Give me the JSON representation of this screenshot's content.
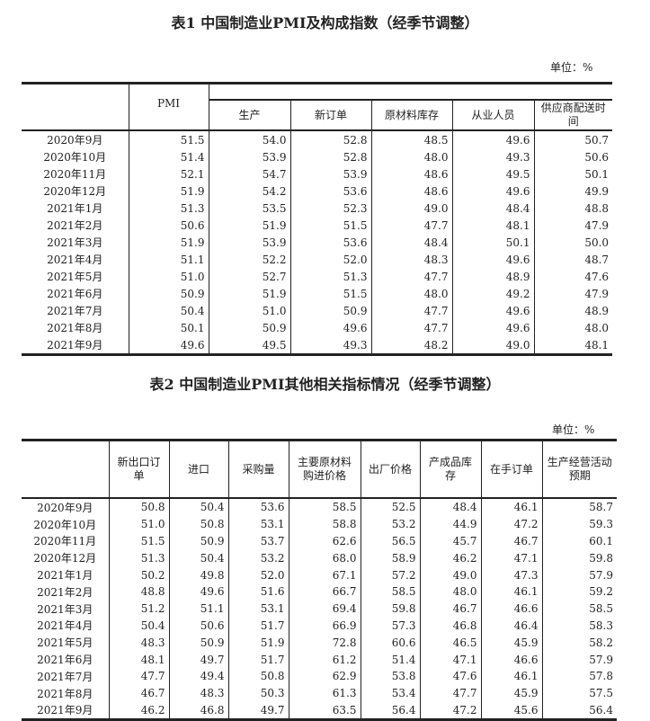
{
  "table1": {
    "title": "表1 中国制造业PMI及构成指数（经季节调整）",
    "unit": "单位：%",
    "headers": [
      "PMI",
      "生产",
      "新订单",
      "原材料库存",
      "从业人员",
      "供应商配送时间"
    ],
    "rows": [
      [
        "2020年9月",
        "51.5",
        "54.0",
        "52.8",
        "48.5",
        "49.6",
        "50.7"
      ],
      [
        "2020年10月",
        "51.4",
        "53.9",
        "52.8",
        "48.0",
        "49.3",
        "50.6"
      ],
      [
        "2020年11月",
        "52.1",
        "54.7",
        "53.9",
        "48.6",
        "49.5",
        "50.1"
      ],
      [
        "2020年12月",
        "51.9",
        "54.2",
        "53.6",
        "48.6",
        "49.6",
        "49.9"
      ],
      [
        "2021年1月",
        "51.3",
        "53.5",
        "52.3",
        "49.0",
        "48.4",
        "48.8"
      ],
      [
        "2021年2月",
        "50.6",
        "51.9",
        "51.5",
        "47.7",
        "48.1",
        "47.9"
      ],
      [
        "2021年3月",
        "51.9",
        "53.9",
        "53.6",
        "48.4",
        "50.1",
        "50.0"
      ],
      [
        "2021年4月",
        "51.1",
        "52.2",
        "52.0",
        "48.3",
        "49.6",
        "48.7"
      ],
      [
        "2021年5月",
        "51.0",
        "52.7",
        "51.3",
        "47.7",
        "48.9",
        "47.6"
      ],
      [
        "2021年6月",
        "50.9",
        "51.9",
        "51.5",
        "48.0",
        "49.2",
        "47.9"
      ],
      [
        "2021年7月",
        "50.4",
        "51.0",
        "50.9",
        "47.7",
        "49.6",
        "48.9"
      ],
      [
        "2021年8月",
        "50.1",
        "50.9",
        "49.6",
        "47.7",
        "49.6",
        "48.0"
      ],
      [
        "2021年9月",
        "49.6",
        "49.5",
        "49.3",
        "48.2",
        "49.0",
        "48.1"
      ]
    ]
  },
  "table2": {
    "title": "表2 中国制造业PMI其他相关指标情况（经季节调整）",
    "unit": "单位：%",
    "headers": [
      "新出口订单",
      "进口",
      "采购量",
      "主要原材料购进价格",
      "出厂价格",
      "产成品库存",
      "在手订单",
      "生产经营活动预期"
    ],
    "rows": [
      [
        "2020年9月",
        "50.8",
        "50.4",
        "53.6",
        "58.5",
        "52.5",
        "48.4",
        "46.1",
        "58.7"
      ],
      [
        "2020年10月",
        "51.0",
        "50.8",
        "53.1",
        "58.8",
        "53.2",
        "44.9",
        "47.2",
        "59.3"
      ],
      [
        "2020年11月",
        "51.5",
        "50.9",
        "53.7",
        "62.6",
        "56.5",
        "45.7",
        "46.7",
        "60.1"
      ],
      [
        "2020年12月",
        "51.3",
        "50.4",
        "53.2",
        "68.0",
        "58.9",
        "46.2",
        "47.1",
        "59.8"
      ],
      [
        "2021年1月",
        "50.2",
        "49.8",
        "52.0",
        "67.1",
        "57.2",
        "49.0",
        "47.3",
        "57.9"
      ],
      [
        "2021年2月",
        "48.8",
        "49.6",
        "51.6",
        "66.7",
        "58.5",
        "48.0",
        "46.1",
        "59.2"
      ],
      [
        "2021年3月",
        "51.2",
        "51.1",
        "53.1",
        "69.4",
        "59.8",
        "46.7",
        "46.6",
        "58.5"
      ],
      [
        "2021年4月",
        "50.4",
        "50.6",
        "51.7",
        "66.9",
        "57.3",
        "46.8",
        "46.4",
        "58.3"
      ],
      [
        "2021年5月",
        "48.3",
        "50.9",
        "51.9",
        "72.8",
        "60.6",
        "46.5",
        "45.9",
        "58.2"
      ],
      [
        "2021年6月",
        "48.1",
        "49.7",
        "51.7",
        "61.2",
        "51.4",
        "47.1",
        "46.6",
        "57.9"
      ],
      [
        "2021年7月",
        "47.7",
        "49.4",
        "50.8",
        "62.9",
        "53.8",
        "47.6",
        "46.1",
        "57.8"
      ],
      [
        "2021年8月",
        "46.7",
        "48.3",
        "50.3",
        "61.3",
        "53.4",
        "47.7",
        "45.9",
        "57.5"
      ],
      [
        "2021年9月",
        "46.2",
        "46.8",
        "49.7",
        "63.5",
        "56.4",
        "47.2",
        "45.6",
        "56.4"
      ]
    ]
  }
}
